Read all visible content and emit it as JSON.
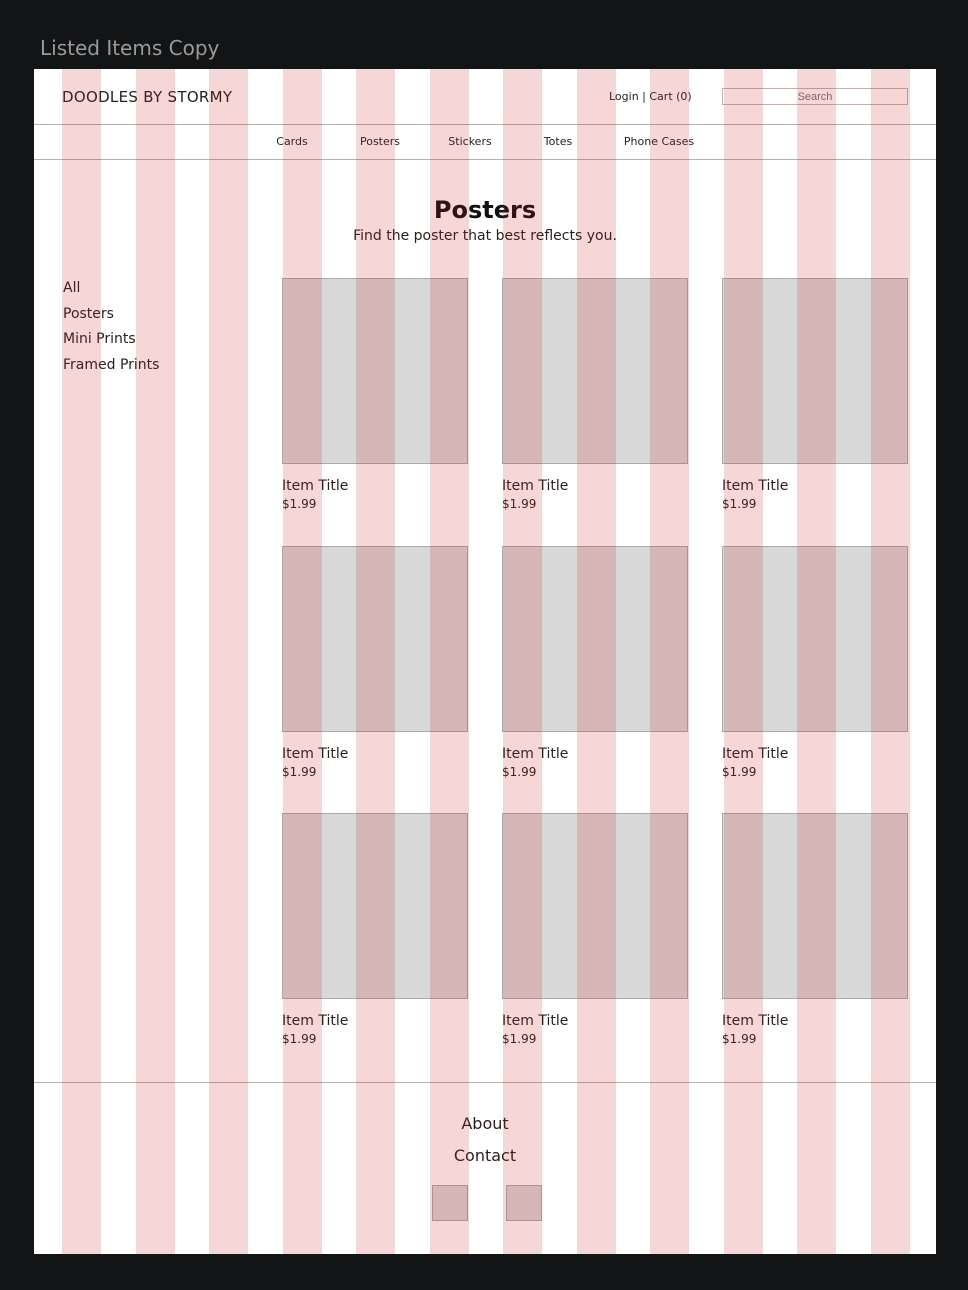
{
  "frame_title": "Listed Items Copy",
  "header": {
    "logo": "DOODLES BY STORMY",
    "account": "Login | Cart (0)",
    "search_placeholder": "Search"
  },
  "nav": [
    "Cards",
    "Posters",
    "Stickers",
    "Totes",
    "Phone Cases"
  ],
  "page": {
    "title": "Posters",
    "subtitle": "Find the poster that best reflects you."
  },
  "sidebar": [
    "All",
    "Posters",
    "Mini Prints",
    "Framed Prints"
  ],
  "items": [
    {
      "title": "Item Title",
      "price": "$1.99"
    },
    {
      "title": "Item Title",
      "price": "$1.99"
    },
    {
      "title": "Item Title",
      "price": "$1.99"
    },
    {
      "title": "Item Title",
      "price": "$1.99"
    },
    {
      "title": "Item Title",
      "price": "$1.99"
    },
    {
      "title": "Item Title",
      "price": "$1.99"
    },
    {
      "title": "Item Title",
      "price": "$1.99"
    },
    {
      "title": "Item Title",
      "price": "$1.99"
    },
    {
      "title": "Item Title",
      "price": "$1.99"
    }
  ],
  "footer": {
    "about": "About",
    "contact": "Contact"
  },
  "colors": {
    "grid": "#f4d7d6",
    "placeholder": "#d8d8d8",
    "background": "#131416"
  }
}
